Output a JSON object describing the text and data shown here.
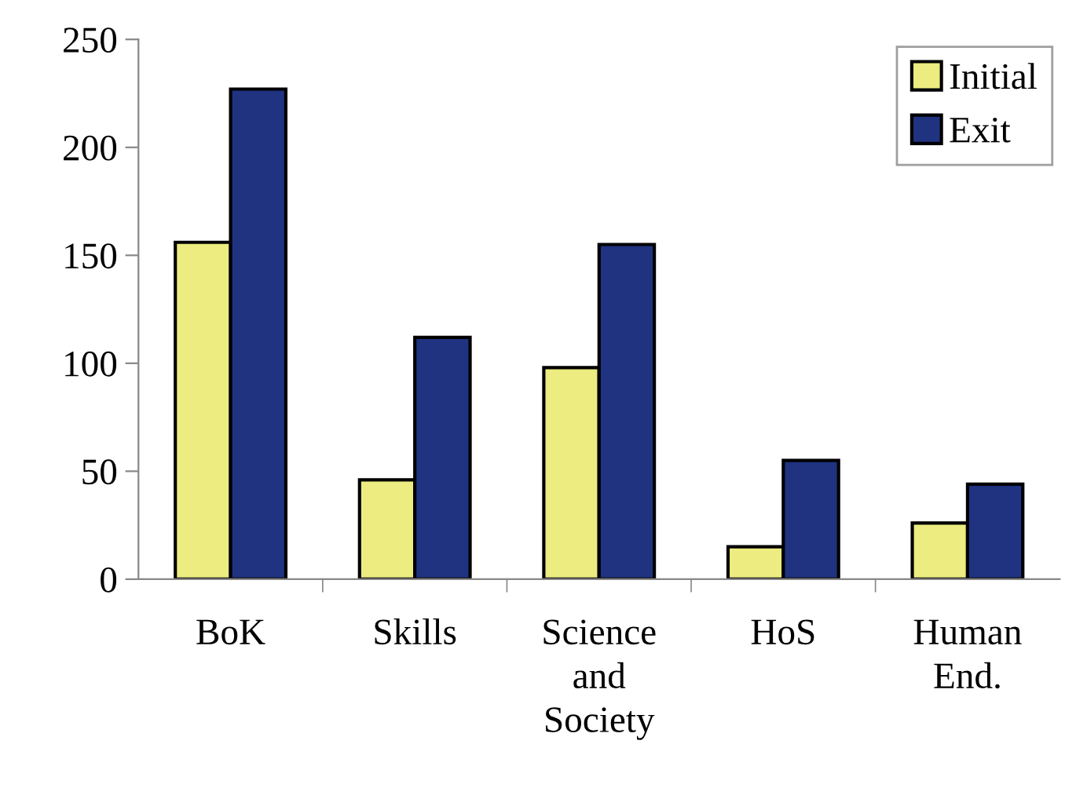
{
  "chart_data": {
    "type": "bar",
    "categories": [
      "BoK",
      "Skills",
      "Science\nand\nSociety",
      "HoS",
      "Human\nEnd."
    ],
    "series": [
      {
        "name": "Initial",
        "color": "#ecec80",
        "values": [
          156,
          46,
          98,
          15,
          26
        ]
      },
      {
        "name": "Exit",
        "color": "#1f3380",
        "values": [
          227,
          112,
          155,
          55,
          44
        ]
      }
    ],
    "ylim": [
      0,
      250
    ],
    "yticks": [
      0,
      50,
      100,
      150,
      200,
      250
    ],
    "grid": false,
    "legend": "top right"
  }
}
